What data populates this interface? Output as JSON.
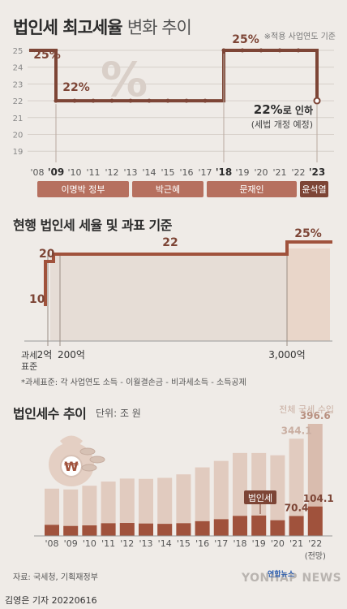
{
  "header": {
    "title_bold": "법인세 최고세율",
    "title_light": "변화 추이",
    "note": "※적용 사업연도 기준"
  },
  "colors": {
    "accent": "#a0523c",
    "dark": "#7d4536",
    "bar_light": "#e1cbbf",
    "bar_dark": "#a0523c",
    "band": "#b6705f"
  },
  "chart_data": [
    {
      "type": "line",
      "x": [
        "'08",
        "'09",
        "'10",
        "'11",
        "'12",
        "'13",
        "'14",
        "'15",
        "'16",
        "'17",
        "'18",
        "'19",
        "'20",
        "'21",
        "'22",
        "'23"
      ],
      "values": [
        25,
        22,
        22,
        22,
        22,
        22,
        22,
        22,
        22,
        22,
        25,
        25,
        25,
        25,
        25,
        22
      ],
      "ylim": [
        19,
        25
      ],
      "yticks": [
        "25",
        "24",
        "23",
        "22",
        "21",
        "20",
        "19"
      ],
      "xlabels": [
        "'08",
        "'09",
        "'10",
        "'11",
        "'12",
        "'13",
        "'14",
        "'15",
        "'16",
        "'17",
        "'18",
        "'19",
        "'20",
        "'21",
        "'22",
        "'23"
      ],
      "bold_x": [
        "'09",
        "'18",
        "'23"
      ],
      "labels": {
        "p08": "25%",
        "p09": "22%",
        "p18": "25%",
        "end_val": "22%",
        "end_suffix": "로 인하",
        "end_note": "(세법 개정 예정)"
      },
      "pct_icon": "%",
      "gov": [
        {
          "name": "이명박 정부",
          "from": "'09",
          "to": "'13"
        },
        {
          "name": "박근혜",
          "from": "'13",
          "to": "'17"
        },
        {
          "name": "문재인",
          "from": "'17",
          "to": "'22"
        },
        {
          "name": "윤석열",
          "from": "'22",
          "to": "'23"
        }
      ]
    },
    {
      "type": "area",
      "title": "현행 법인세 세율 및 과표 기준",
      "steps": [
        {
          "rate": 10,
          "label": "10"
        },
        {
          "rate": 20,
          "label": "20"
        },
        {
          "rate": 22,
          "label": "22"
        },
        {
          "rate": 25,
          "label": "25%"
        }
      ],
      "brackets": [
        "2억",
        "200억",
        "3,000억"
      ],
      "axis_label": "과세\n표준",
      "footnote": "*과세표준: 각 사업연도 소득 - 이월결손금 - 비과세소득 - 소득공제"
    },
    {
      "type": "bar",
      "title": "법인세수 추이",
      "unit": "단위: 조 원",
      "categories": [
        "'08",
        "'09",
        "'10",
        "'11",
        "'12",
        "'13",
        "'14",
        "'15",
        "'16",
        "'17",
        "'18",
        "'19",
        "'20",
        "'21",
        "'22"
      ],
      "series": [
        {
          "name": "전체 국세 수입",
          "values": [
            167.3,
            164.5,
            177.7,
            192.4,
            203.0,
            201.9,
            205.5,
            217.9,
            242.6,
            265.4,
            293.6,
            293.5,
            285.5,
            344.1,
            396.6
          ]
        },
        {
          "name": "법인세",
          "values": [
            39.2,
            35.2,
            37.3,
            44.9,
            45.9,
            43.9,
            42.7,
            45.0,
            52.1,
            59.2,
            70.9,
            72.2,
            55.5,
            70.4,
            104.1
          ]
        }
      ],
      "labels": {
        "total_21": "344.1",
        "total_22": "396.6",
        "corp_21": "70.4",
        "corp_22": "104.1",
        "forecast": "(전망)"
      },
      "ylim": [
        0,
        400
      ]
    }
  ],
  "footer": {
    "source": "자료: 국세청, 기획재정부",
    "author": "김영은 기자  20220616",
    "logo": "YONHAP NEWS",
    "logo_ko": "연합뉴스"
  }
}
